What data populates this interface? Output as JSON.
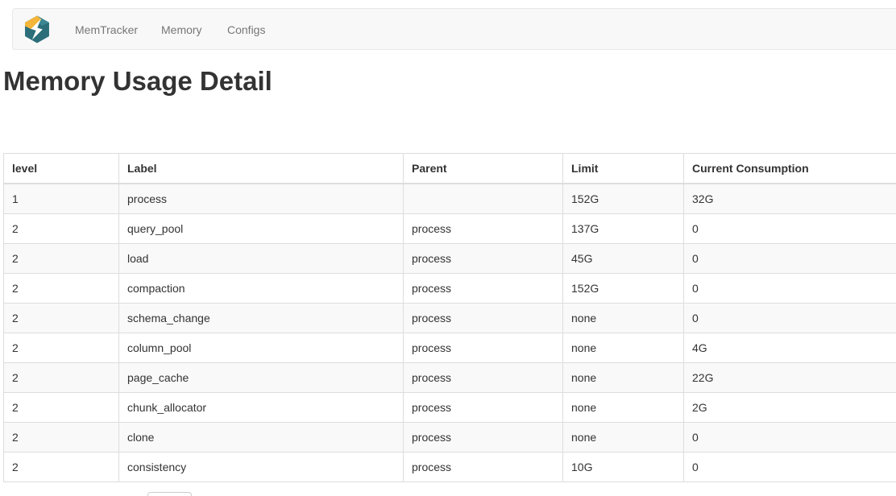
{
  "navbar": {
    "items": [
      {
        "label": "MemTracker"
      },
      {
        "label": "Memory"
      },
      {
        "label": "Configs"
      }
    ],
    "logo": {
      "teal": "#2b6e7a",
      "teal_light": "#3a8793",
      "yellow": "#f3b63a",
      "bolt": "#ffffff"
    }
  },
  "page": {
    "title": "Memory Usage Detail"
  },
  "table": {
    "columns": [
      "level",
      "Label",
      "Parent",
      "Limit",
      "Current Consumption"
    ],
    "rows": [
      [
        "1",
        "process",
        "",
        "152G",
        "32G"
      ],
      [
        "2",
        "query_pool",
        "process",
        "137G",
        "0"
      ],
      [
        "2",
        "load",
        "process",
        "45G",
        "0"
      ],
      [
        "2",
        "compaction",
        "process",
        "152G",
        "0"
      ],
      [
        "2",
        "schema_change",
        "process",
        "none",
        "0"
      ],
      [
        "2",
        "column_pool",
        "process",
        "none",
        "4G"
      ],
      [
        "2",
        "page_cache",
        "process",
        "none",
        "22G"
      ],
      [
        "2",
        "chunk_allocator",
        "process",
        "none",
        "2G"
      ],
      [
        "2",
        "clone",
        "process",
        "none",
        "0"
      ],
      [
        "2",
        "consistency",
        "process",
        "10G",
        "0"
      ]
    ]
  },
  "colors": {
    "navbar_bg": "#f8f8f8",
    "navbar_border": "#e7e7e7",
    "nav_link_text": "#777777",
    "table_border": "#dddddd",
    "stripe_row_bg": "#f9f9f9",
    "text": "#333333"
  }
}
